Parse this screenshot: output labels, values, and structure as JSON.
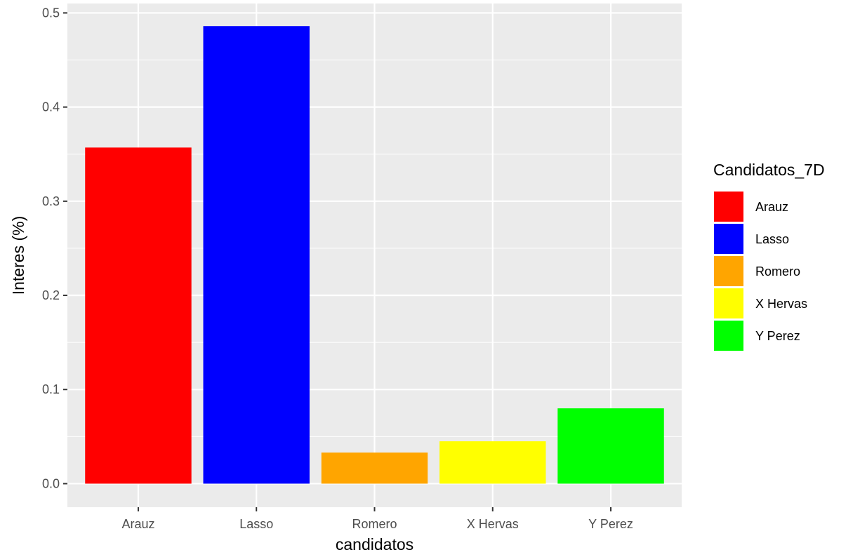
{
  "chart_data": {
    "type": "bar",
    "title": "",
    "xlabel": "candidatos",
    "ylabel": "Interes (%)",
    "categories": [
      "Arauz",
      "Lasso",
      "Romero",
      "X Hervas",
      "Y Perez"
    ],
    "values": [
      0.357,
      0.486,
      0.033,
      0.045,
      0.08
    ],
    "colors": [
      "#ff0000",
      "#0000ff",
      "#ffa500",
      "#ffff00",
      "#00ff00"
    ],
    "ylim": [
      -0.025,
      0.51
    ],
    "yticks": [
      0.0,
      0.1,
      0.2,
      0.3,
      0.4,
      0.5
    ],
    "ytick_labels": [
      "0.0",
      "0.1",
      "0.2",
      "0.3",
      "0.4",
      "0.5"
    ],
    "grid": true,
    "panel_background": "#ebebeb",
    "legend": {
      "title": "Candidatos_7D",
      "placement": "right",
      "entries": [
        "Arauz",
        "Lasso",
        "Romero",
        "X Hervas",
        "Y Perez"
      ]
    }
  }
}
